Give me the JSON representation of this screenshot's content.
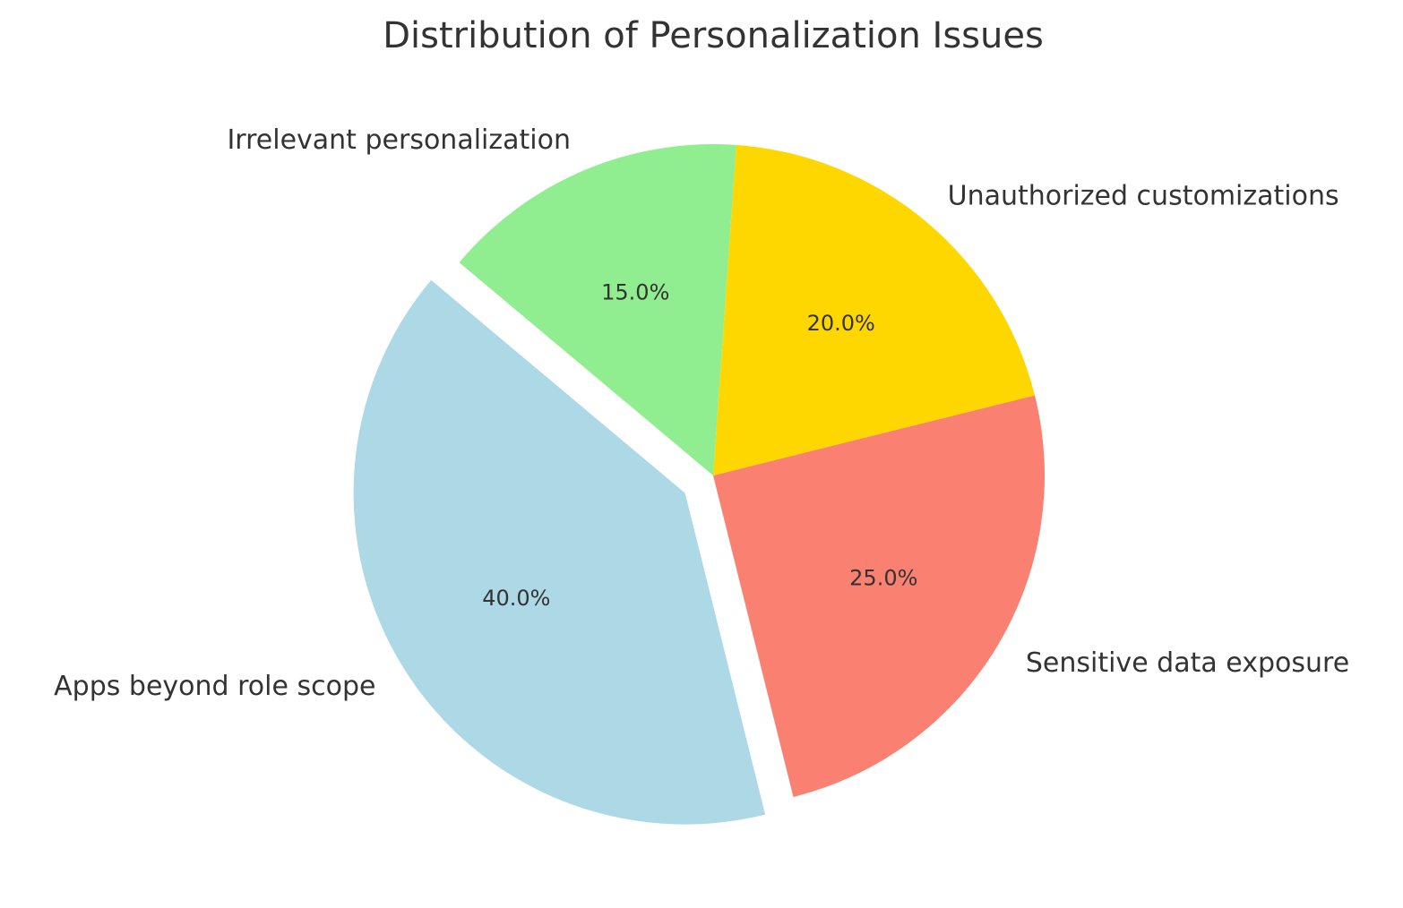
{
  "chart_data": {
    "type": "pie",
    "title": "Distribution of Personalization Issues",
    "start_angle_deg": 140,
    "direction": "counterclockwise",
    "slices": [
      {
        "label": "Apps beyond role scope",
        "value": 40.0,
        "pct_text": "40.0%",
        "color": "#ADD8E6",
        "exploded": true
      },
      {
        "label": "Sensitive data exposure",
        "value": 25.0,
        "pct_text": "25.0%",
        "color": "#FA8072",
        "exploded": false
      },
      {
        "label": "Unauthorized customizations",
        "value": 20.0,
        "pct_text": "20.0%",
        "color": "#FFD700",
        "exploded": false
      },
      {
        "label": "Irrelevant personalization",
        "value": 15.0,
        "pct_text": "15.0%",
        "color": "#90EE90",
        "exploded": false
      }
    ]
  }
}
